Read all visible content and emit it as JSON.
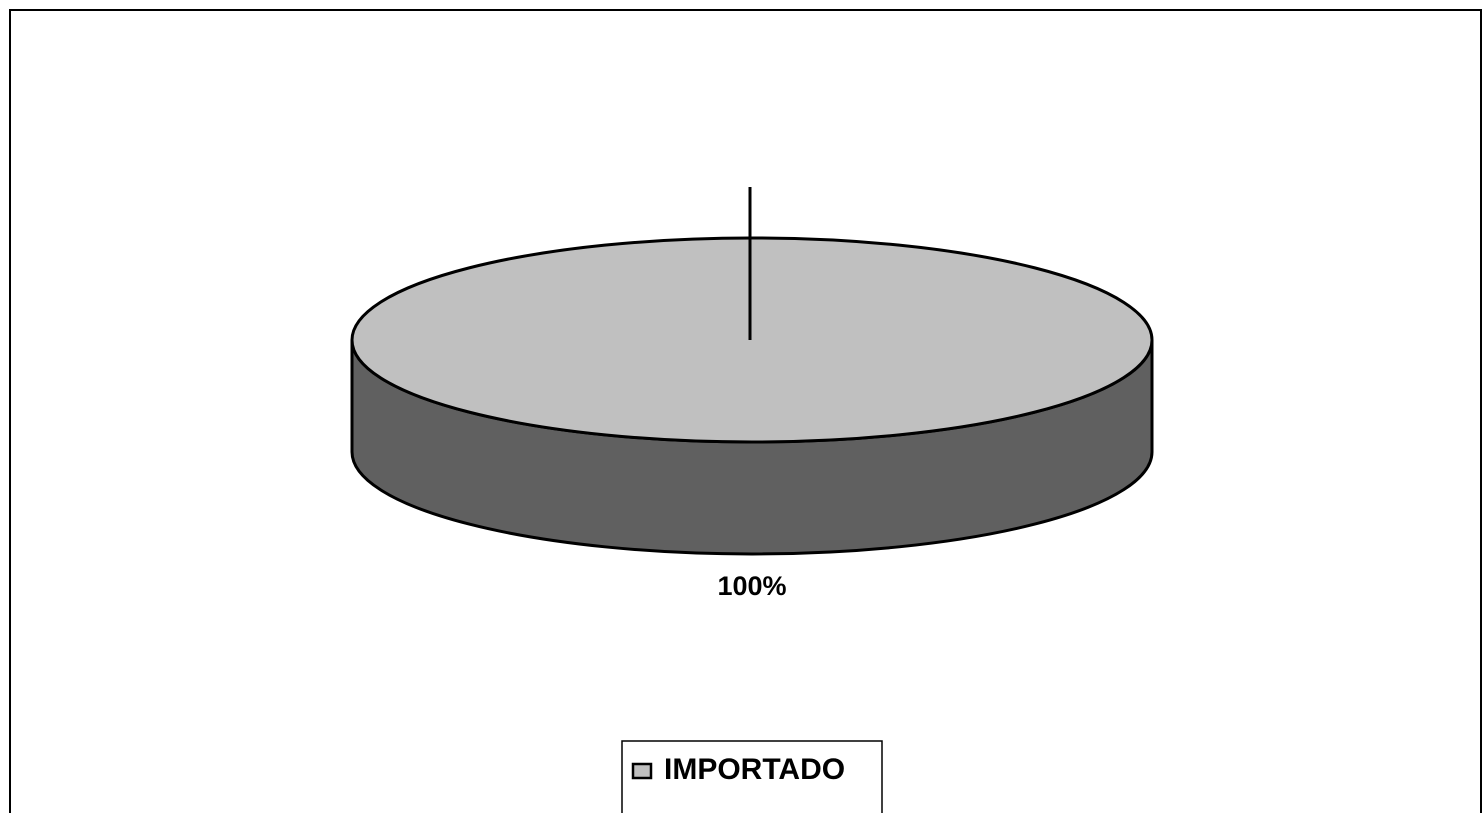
{
  "chart_data": {
    "type": "pie",
    "categories": [
      "IMPORTADO"
    ],
    "values": [
      100
    ],
    "value_labels": [
      "100%"
    ],
    "colors": [
      "#c0c0c0"
    ],
    "legend": "bottom"
  }
}
